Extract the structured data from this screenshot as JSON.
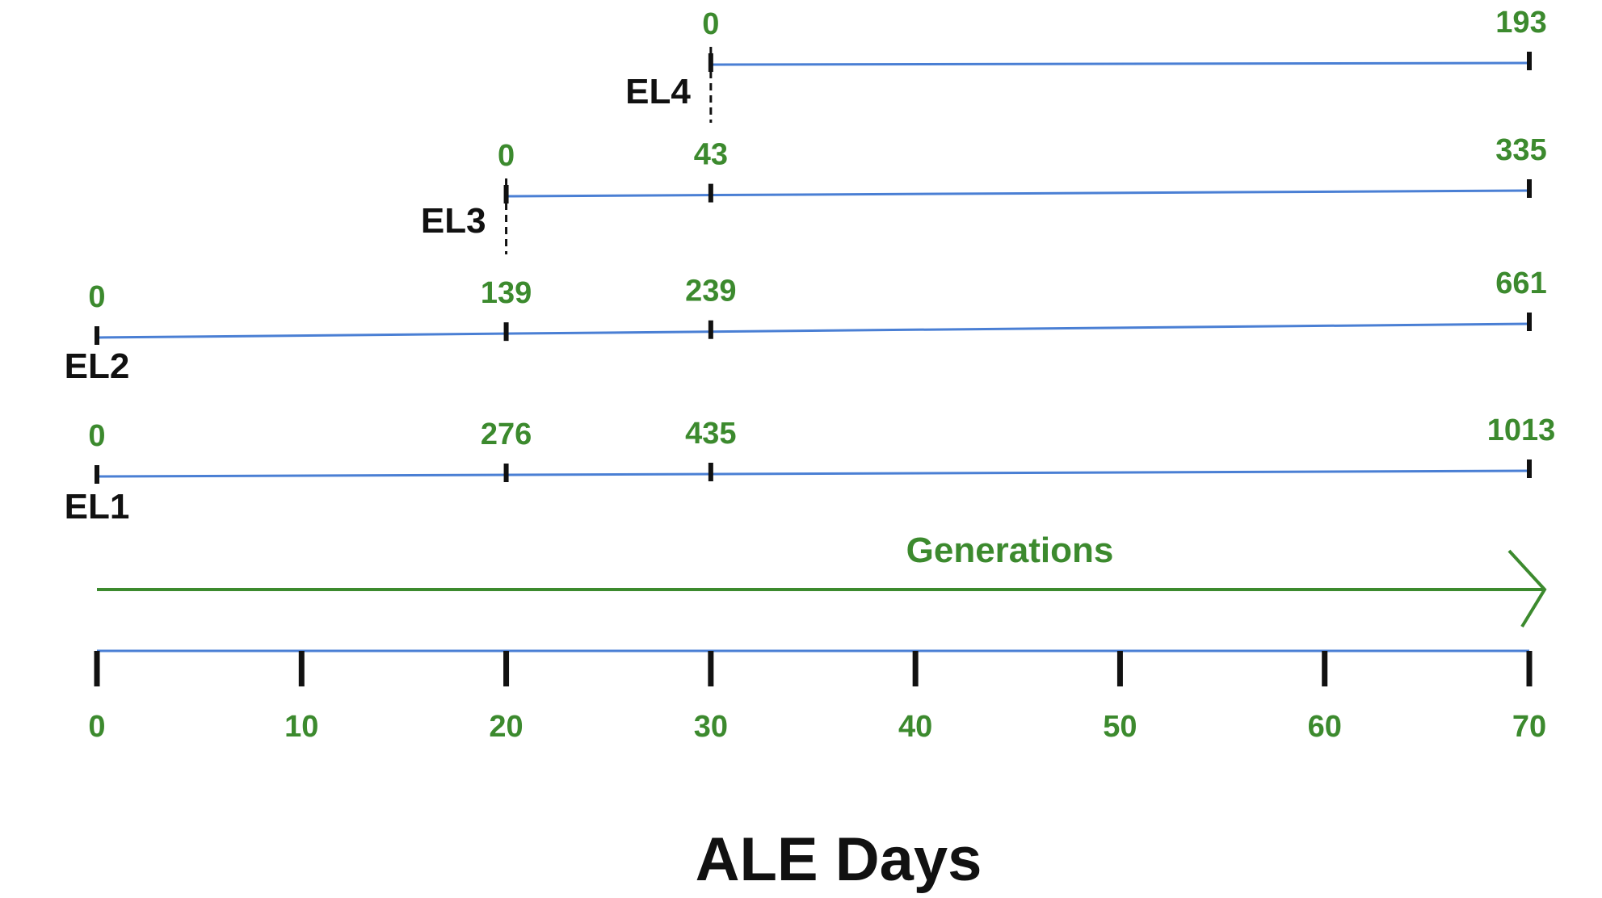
{
  "colors": {
    "timeline": "#4a7fd4",
    "values": "#3c8a2e",
    "ticks": "#111111",
    "labels": "#111111"
  },
  "axis": {
    "title": "ALE Days",
    "ticks": [
      0,
      10,
      20,
      30,
      40,
      50,
      60,
      70
    ],
    "tick_labels": [
      "0",
      "10",
      "20",
      "30",
      "40",
      "50",
      "60",
      "70"
    ]
  },
  "generations_arrow": {
    "label": "Generations"
  },
  "lineages": [
    {
      "name": "EL4",
      "start_day": 30,
      "end_day": 70,
      "branch": true,
      "marks": [
        {
          "day": 30,
          "generations": "0"
        },
        {
          "day": 70,
          "generations": "193"
        }
      ]
    },
    {
      "name": "EL3",
      "start_day": 20,
      "end_day": 70,
      "branch": true,
      "marks": [
        {
          "day": 20,
          "generations": "0"
        },
        {
          "day": 30,
          "generations": "43"
        },
        {
          "day": 70,
          "generations": "335"
        }
      ]
    },
    {
      "name": "EL2",
      "start_day": 0,
      "end_day": 70,
      "branch": false,
      "marks": [
        {
          "day": 0,
          "generations": "0"
        },
        {
          "day": 20,
          "generations": "139"
        },
        {
          "day": 30,
          "generations": "239"
        },
        {
          "day": 70,
          "generations": "661"
        }
      ]
    },
    {
      "name": "EL1",
      "start_day": 0,
      "end_day": 70,
      "branch": false,
      "marks": [
        {
          "day": 0,
          "generations": "0"
        },
        {
          "day": 20,
          "generations": "276"
        },
        {
          "day": 30,
          "generations": "435"
        },
        {
          "day": 70,
          "generations": "1013"
        }
      ]
    }
  ]
}
